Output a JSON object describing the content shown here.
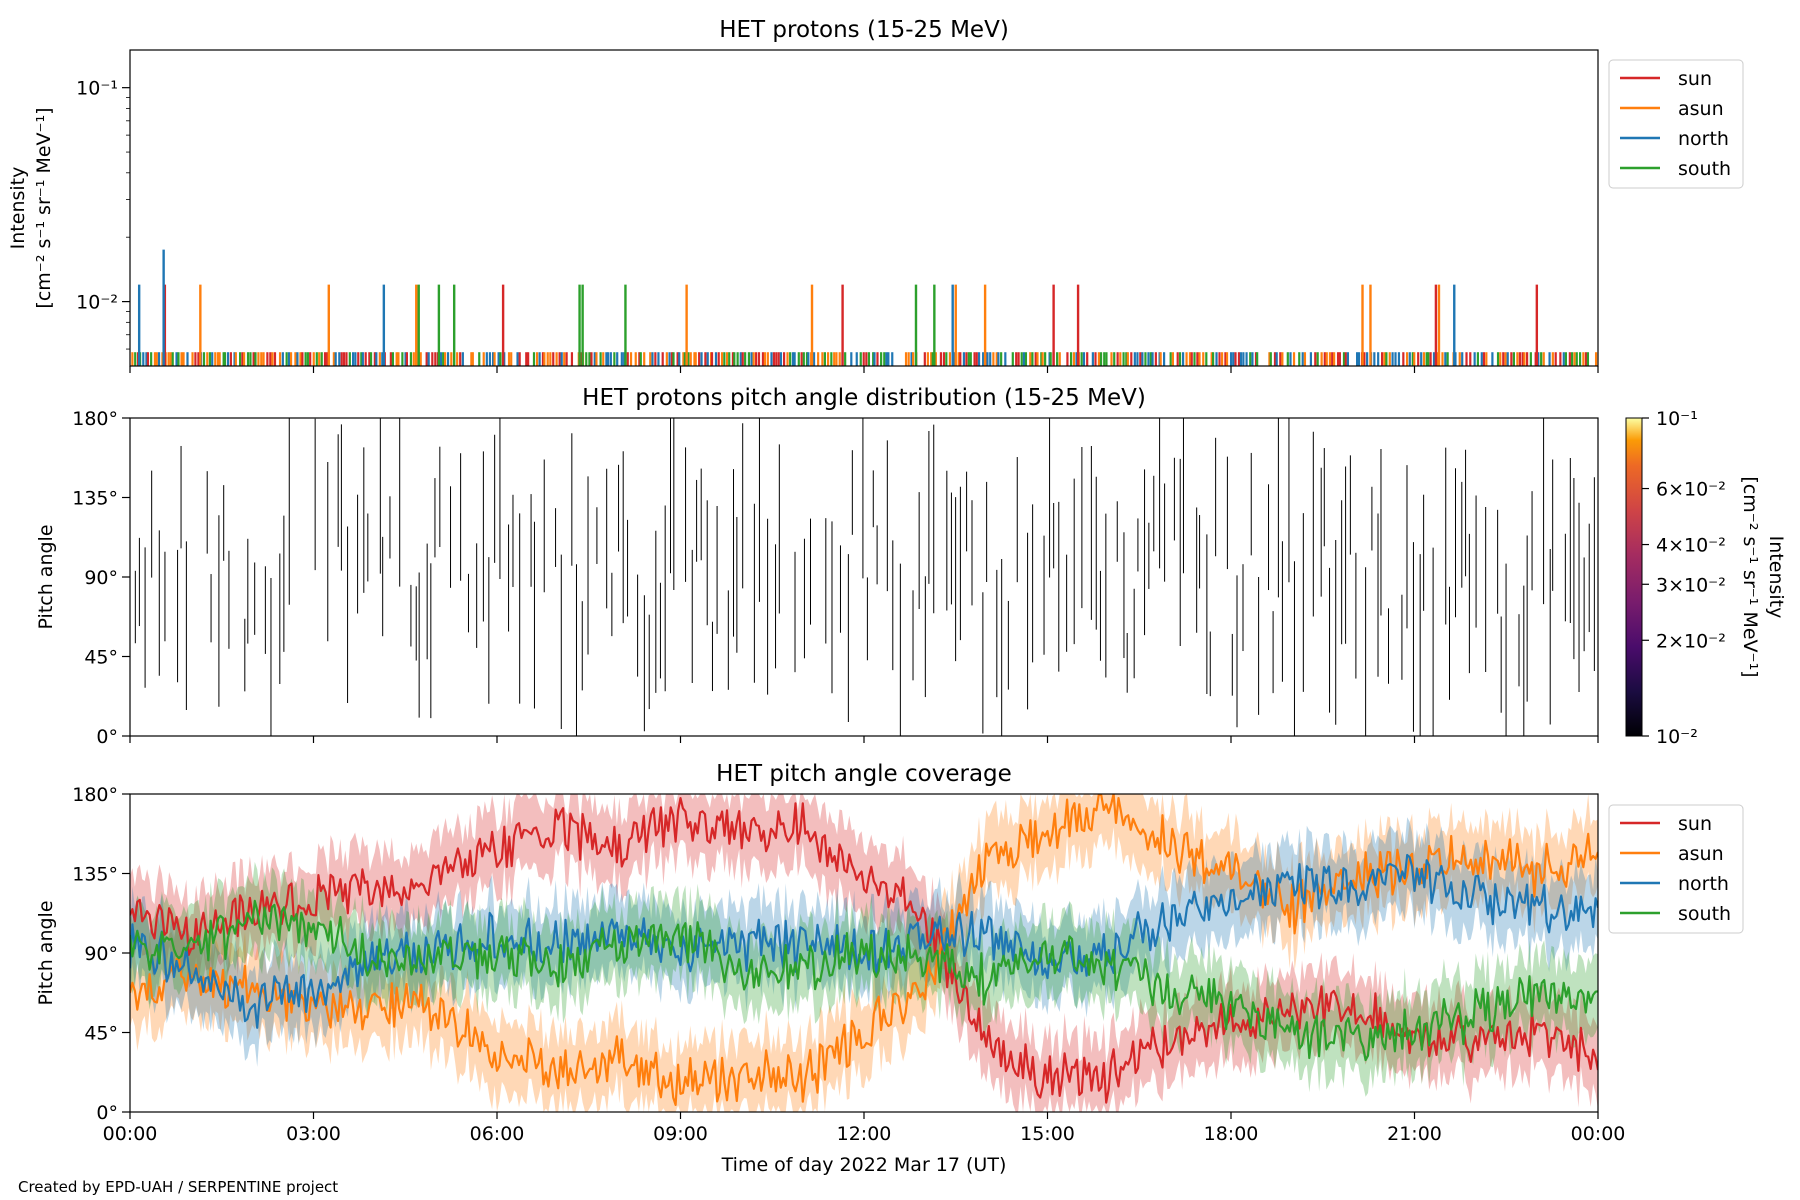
{
  "credit": "Created by EPD-UAH / SERPENTINE project",
  "colors": {
    "sun": "#d62728",
    "asun": "#ff7f0e",
    "north": "#1f77b4",
    "south": "#2ca02c",
    "pad_marks": "#000000"
  },
  "chart_data": [
    {
      "type": "line",
      "title": "HET protons (15-25 MeV)",
      "ylabel_lines": [
        "Intensity",
        "[cm⁻² s⁻¹ sr⁻¹ MeV⁻¹]"
      ],
      "yscale": "log",
      "ylim": [
        0.005,
        0.15
      ],
      "yticks": [
        {
          "value": 0.01,
          "label": "10⁻²"
        },
        {
          "value": 0.1,
          "label": "10⁻¹"
        }
      ],
      "xlim_hours": [
        0,
        24
      ],
      "legend": {
        "placement": "outside-upper-right",
        "entries": [
          "sun",
          "asun",
          "north",
          "south"
        ]
      },
      "baseline_level": 0.0058,
      "series": [
        {
          "name": "sun",
          "spikes": [
            {
              "t": 0.57,
              "v": 0.012
            },
            {
              "t": 6.1,
              "v": 0.012
            },
            {
              "t": 11.65,
              "v": 0.012
            },
            {
              "t": 15.1,
              "v": 0.012
            },
            {
              "t": 15.5,
              "v": 0.012
            },
            {
              "t": 21.35,
              "v": 0.012
            },
            {
              "t": 23.0,
              "v": 0.012
            }
          ]
        },
        {
          "name": "asun",
          "spikes": [
            {
              "t": 1.15,
              "v": 0.012
            },
            {
              "t": 3.25,
              "v": 0.012
            },
            {
              "t": 4.68,
              "v": 0.012
            },
            {
              "t": 9.1,
              "v": 0.012
            },
            {
              "t": 11.15,
              "v": 0.012
            },
            {
              "t": 13.5,
              "v": 0.012
            },
            {
              "t": 13.98,
              "v": 0.012
            },
            {
              "t": 20.15,
              "v": 0.012
            },
            {
              "t": 20.28,
              "v": 0.012
            },
            {
              "t": 21.4,
              "v": 0.012
            }
          ]
        },
        {
          "name": "north",
          "spikes": [
            {
              "t": 0.15,
              "v": 0.012
            },
            {
              "t": 0.55,
              "v": 0.0175
            },
            {
              "t": 4.15,
              "v": 0.012
            },
            {
              "t": 13.45,
              "v": 0.012
            },
            {
              "t": 21.65,
              "v": 0.012
            }
          ]
        },
        {
          "name": "south",
          "spikes": [
            {
              "t": 4.72,
              "v": 0.012
            },
            {
              "t": 5.05,
              "v": 0.012
            },
            {
              "t": 5.3,
              "v": 0.012
            },
            {
              "t": 7.35,
              "v": 0.012
            },
            {
              "t": 7.4,
              "v": 0.012
            },
            {
              "t": 8.1,
              "v": 0.012
            },
            {
              "t": 12.85,
              "v": 0.012
            },
            {
              "t": 13.15,
              "v": 0.012
            }
          ]
        }
      ]
    },
    {
      "type": "heatmap",
      "title": "HET protons pitch angle distribution (15-25 MeV)",
      "ylabel": "Pitch angle",
      "ylim": [
        0,
        180
      ],
      "yticks": [
        "0°",
        "45°",
        "90°",
        "135°",
        "180°"
      ],
      "xlim_hours": [
        0,
        24
      ],
      "colorbar": {
        "scale": "log",
        "colormap": "inferno",
        "range": [
          0.01,
          0.1
        ],
        "label_lines": [
          "Intensity",
          "[cm⁻² s⁻¹ sr⁻¹ MeV⁻¹]"
        ],
        "ticks": [
          {
            "value": 0.01,
            "label": "10⁻²"
          },
          {
            "value": 0.02,
            "label": "2×10⁻²"
          },
          {
            "value": 0.03,
            "label": "3×10⁻²"
          },
          {
            "value": 0.04,
            "label": "4×10⁻²"
          },
          {
            "value": 0.06,
            "label": "6×10⁻²"
          },
          {
            "value": 0.1,
            "label": "10⁻¹"
          }
        ]
      }
    },
    {
      "type": "area",
      "title": "HET pitch angle coverage",
      "ylabel": "Pitch angle",
      "ylim": [
        0,
        180
      ],
      "yticks": [
        "0°",
        "45°",
        "90°",
        "135°",
        "180°"
      ],
      "xlabel": "Time of day 2022 Mar 17 (UT)",
      "xticks": [
        "00:00",
        "03:00",
        "06:00",
        "09:00",
        "12:00",
        "15:00",
        "18:00",
        "21:00",
        "00:00"
      ],
      "legend": {
        "placement": "outside-upper-right",
        "entries": [
          "sun",
          "asun",
          "north",
          "south"
        ]
      },
      "band_half_width_deg": 18,
      "x_hours": [
        0,
        1,
        2,
        3,
        4,
        5,
        6,
        7,
        8,
        9,
        10,
        11,
        12,
        13,
        14,
        15,
        16,
        17,
        18,
        19,
        20,
        21,
        22,
        23,
        24
      ],
      "series": [
        {
          "name": "sun",
          "values": [
            110,
            100,
            112,
            120,
            125,
            130,
            150,
            160,
            150,
            165,
            160,
            160,
            135,
            110,
            40,
            20,
            20,
            40,
            50,
            60,
            60,
            40,
            40,
            45,
            30
          ]
        },
        {
          "name": "asun",
          "values": [
            70,
            75,
            70,
            60,
            60,
            60,
            30,
            25,
            30,
            15,
            20,
            20,
            45,
            70,
            140,
            160,
            170,
            150,
            140,
            115,
            135,
            140,
            145,
            135,
            150
          ]
        },
        {
          "name": "north",
          "values": [
            95,
            80,
            60,
            65,
            85,
            90,
            100,
            95,
            100,
            90,
            95,
            95,
            90,
            100,
            100,
            85,
            90,
            110,
            120,
            130,
            130,
            135,
            120,
            115,
            115
          ]
        },
        {
          "name": "south",
          "values": [
            95,
            90,
            110,
            105,
            90,
            85,
            90,
            80,
            95,
            100,
            80,
            80,
            90,
            85,
            75,
            90,
            85,
            70,
            60,
            45,
            40,
            45,
            55,
            70,
            60
          ]
        }
      ]
    }
  ]
}
